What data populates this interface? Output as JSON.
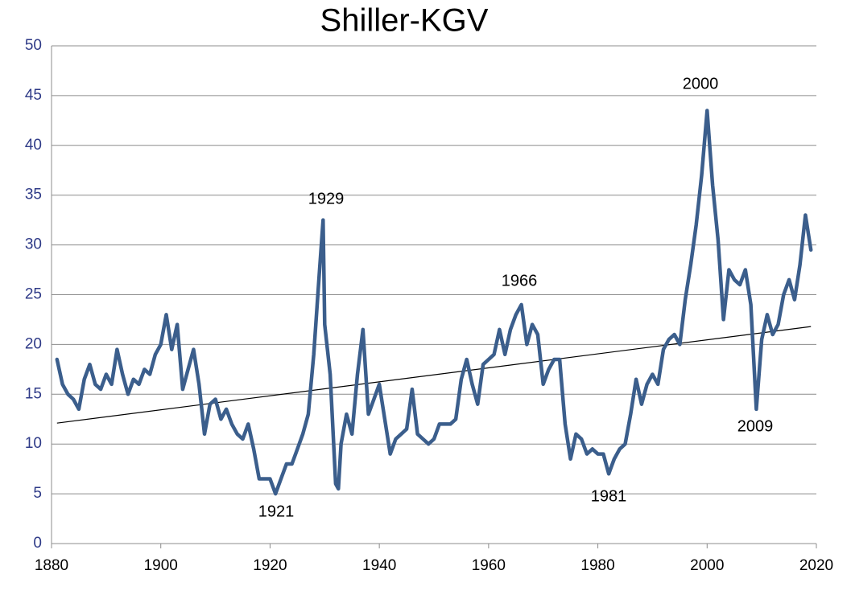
{
  "chart_data": {
    "type": "line",
    "title": "Shiller-KGV",
    "x": [
      1881,
      1882,
      1883,
      1884,
      1885,
      1886,
      1887,
      1888,
      1889,
      1890,
      1891,
      1892,
      1893,
      1894,
      1895,
      1896,
      1897,
      1898,
      1899,
      1900,
      1901,
      1902,
      1903,
      1904,
      1905,
      1906,
      1907,
      1908,
      1909,
      1910,
      1911,
      1912,
      1913,
      1914,
      1915,
      1916,
      1917,
      1918,
      1919,
      1920,
      1921,
      1922,
      1923,
      1924,
      1925,
      1926,
      1927,
      1928,
      1929,
      1929.7,
      1930,
      1931,
      1932,
      1932.5,
      1933,
      1934,
      1935,
      1936,
      1937,
      1938,
      1939,
      1940,
      1941,
      1942,
      1943,
      1944,
      1945,
      1946,
      1947,
      1948,
      1949,
      1950,
      1951,
      1952,
      1953,
      1954,
      1955,
      1956,
      1957,
      1958,
      1959,
      1960,
      1961,
      1962,
      1963,
      1964,
      1965,
      1966,
      1967,
      1968,
      1969,
      1970,
      1971,
      1972,
      1973,
      1974,
      1975,
      1976,
      1977,
      1978,
      1979,
      1980,
      1981,
      1982,
      1983,
      1984,
      1985,
      1986,
      1987,
      1988,
      1989,
      1990,
      1991,
      1992,
      1993,
      1994,
      1995,
      1996,
      1997,
      1998,
      1999,
      2000,
      2001,
      2002,
      2003,
      2004,
      2005,
      2006,
      2007,
      2008,
      2009,
      2010,
      2011,
      2012,
      2013,
      2014,
      2015,
      2016,
      2017,
      2018,
      2019
    ],
    "series": [
      {
        "color": "#3b5e8c",
        "values": [
          18.5,
          16,
          15,
          14.5,
          13.5,
          16.5,
          18,
          16,
          15.5,
          17,
          16,
          19.5,
          17,
          15,
          16.5,
          16,
          17.5,
          17,
          19,
          20,
          23,
          19.5,
          22,
          15.5,
          17.5,
          19.5,
          16,
          11,
          14,
          14.5,
          12.5,
          13.5,
          12,
          11,
          10.5,
          12,
          9.5,
          6.5,
          6.5,
          6.5,
          5,
          6.5,
          8,
          8,
          9.5,
          11,
          13,
          19,
          27,
          32.5,
          22,
          17,
          6,
          5.5,
          10,
          13,
          11,
          17,
          21.5,
          13,
          14.5,
          16,
          12.5,
          9,
          10.5,
          11,
          11.5,
          15.5,
          11,
          10.5,
          10,
          10.5,
          12,
          12,
          12,
          12.5,
          16.5,
          18.5,
          16,
          14,
          18,
          18.5,
          19,
          21.5,
          19,
          21.5,
          23,
          24,
          20,
          22,
          21,
          16,
          17.5,
          18.5,
          18.5,
          12,
          8.5,
          11,
          10.5,
          9,
          9.5,
          9,
          9,
          7,
          8.5,
          9.5,
          10,
          13,
          16.5,
          14,
          16,
          17,
          16,
          19.5,
          20.5,
          21,
          20,
          24.5,
          28,
          32,
          37,
          43.5,
          36,
          30.5,
          22.5,
          27.5,
          26.5,
          26,
          27.5,
          24,
          13.5,
          20.5,
          23,
          21,
          22,
          25,
          26.5,
          24.5,
          28,
          33,
          29.5
        ]
      }
    ],
    "trend": {
      "color": "#000000",
      "x": [
        1881,
        2019
      ],
      "values": [
        12.1,
        21.8
      ]
    },
    "annotations": [
      "1929",
      "1921",
      "1966",
      "1981",
      "2000",
      "2009"
    ],
    "xlim": [
      1880,
      2020
    ],
    "xticks": [
      1880,
      1900,
      1920,
      1940,
      1960,
      1980,
      2000,
      2020
    ],
    "ylim": [
      0,
      50
    ],
    "yticks": [
      0,
      5,
      10,
      15,
      20,
      25,
      30,
      35,
      40,
      45,
      50
    ],
    "grid": true
  }
}
